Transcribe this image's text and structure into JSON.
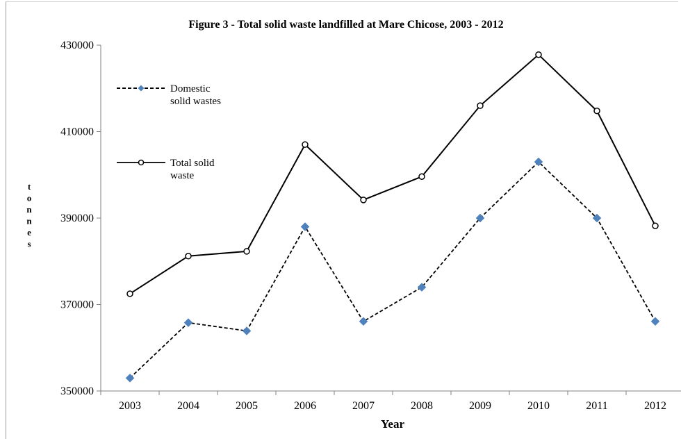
{
  "chart_data": {
    "type": "line",
    "title": "Figure 3 - Total solid waste landfilled at Mare Chicose, 2003 - 2012",
    "xlabel": "Year",
    "ylabel": "tonnes",
    "categories": [
      "2003",
      "2004",
      "2005",
      "2006",
      "2007",
      "2008",
      "2009",
      "2010",
      "2011",
      "2012"
    ],
    "ylim": [
      350000,
      430000
    ],
    "yticks": [
      350000,
      370000,
      390000,
      410000,
      430000
    ],
    "ytick_labels": [
      "350000",
      "370000",
      "390000",
      "410000",
      "430000"
    ],
    "grid": false,
    "legend_position": "top-left",
    "series": [
      {
        "name_lines": [
          "Domestic",
          "solid wastes"
        ],
        "style": "dashed",
        "marker": "diamond",
        "marker_color": "#4f81bd",
        "values": [
          353000,
          365800,
          363900,
          388000,
          366100,
          374000,
          390000,
          403000,
          390000,
          366100
        ]
      },
      {
        "name_lines": [
          "Total solid",
          "waste"
        ],
        "style": "solid",
        "marker": "circle",
        "marker_color": "#ffffff",
        "values": [
          372500,
          381200,
          382300,
          407000,
          394200,
          399600,
          416000,
          427800,
          414800,
          388200
        ]
      }
    ]
  }
}
